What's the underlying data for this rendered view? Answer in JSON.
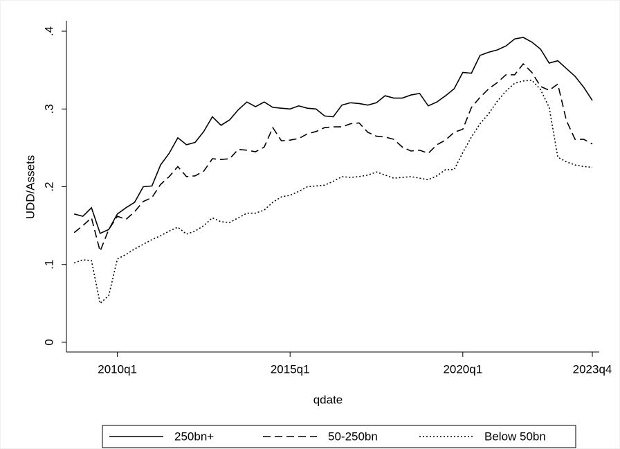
{
  "chart_data": {
    "type": "line",
    "x_label": "qdate",
    "y_label": "UDD/Assets",
    "x": [
      195,
      196,
      197,
      198,
      199,
      200,
      201,
      202,
      203,
      204,
      205,
      206,
      207,
      208,
      209,
      210,
      211,
      212,
      213,
      214,
      215,
      216,
      217,
      218,
      219,
      220,
      221,
      222,
      223,
      224,
      225,
      226,
      227,
      228,
      229,
      230,
      231,
      232,
      233,
      234,
      235,
      236,
      237,
      238,
      239,
      240,
      241,
      242,
      243,
      244,
      245,
      246,
      247,
      248,
      249,
      250,
      251,
      252,
      253,
      254,
      255
    ],
    "series": [
      {
        "name": "250bn+",
        "color": "#000000",
        "dash": "solid",
        "values": [
          0.165,
          0.162,
          0.173,
          0.14,
          0.145,
          0.165,
          0.173,
          0.18,
          0.2,
          0.201,
          0.228,
          0.243,
          0.263,
          0.254,
          0.257,
          0.271,
          0.29,
          0.279,
          0.286,
          0.299,
          0.309,
          0.303,
          0.309,
          0.302,
          0.301,
          0.3,
          0.304,
          0.301,
          0.3,
          0.291,
          0.29,
          0.305,
          0.308,
          0.307,
          0.305,
          0.308,
          0.317,
          0.314,
          0.314,
          0.318,
          0.32,
          0.304,
          0.309,
          0.317,
          0.326,
          0.347,
          0.346,
          0.369,
          0.373,
          0.376,
          0.381,
          0.39,
          0.392,
          0.386,
          0.377,
          0.359,
          0.362,
          0.352,
          0.342,
          0.328,
          0.311
        ]
      },
      {
        "name": "50-250bn",
        "color": "#000000",
        "dash": "dashed",
        "values": [
          0.141,
          0.15,
          0.16,
          0.117,
          0.145,
          0.162,
          0.158,
          0.168,
          0.181,
          0.186,
          0.203,
          0.213,
          0.226,
          0.213,
          0.214,
          0.22,
          0.236,
          0.235,
          0.236,
          0.248,
          0.247,
          0.245,
          0.251,
          0.276,
          0.259,
          0.26,
          0.262,
          0.268,
          0.271,
          0.276,
          0.277,
          0.277,
          0.281,
          0.282,
          0.27,
          0.265,
          0.264,
          0.261,
          0.251,
          0.246,
          0.247,
          0.243,
          0.254,
          0.26,
          0.27,
          0.274,
          0.302,
          0.315,
          0.326,
          0.334,
          0.344,
          0.344,
          0.358,
          0.347,
          0.329,
          0.324,
          0.332,
          0.285,
          0.261,
          0.261,
          0.255
        ]
      },
      {
        "name": "Below 50bn",
        "color": "#000000",
        "dash": "dotted",
        "values": [
          0.102,
          0.106,
          0.105,
          0.05,
          0.06,
          0.107,
          0.113,
          0.12,
          0.126,
          0.132,
          0.137,
          0.143,
          0.148,
          0.139,
          0.143,
          0.15,
          0.16,
          0.155,
          0.154,
          0.16,
          0.166,
          0.166,
          0.17,
          0.18,
          0.187,
          0.189,
          0.194,
          0.2,
          0.201,
          0.202,
          0.207,
          0.213,
          0.212,
          0.213,
          0.215,
          0.219,
          0.215,
          0.211,
          0.212,
          0.213,
          0.211,
          0.209,
          0.214,
          0.222,
          0.222,
          0.244,
          0.264,
          0.281,
          0.294,
          0.31,
          0.323,
          0.333,
          0.336,
          0.337,
          0.325,
          0.302,
          0.238,
          0.232,
          0.228,
          0.226,
          0.225
        ]
      }
    ],
    "xlim": [
      194.1,
      255.8
    ],
    "xticks": [
      {
        "value": 200,
        "label": "2010q1"
      },
      {
        "value": 220,
        "label": "2015q1"
      },
      {
        "value": 240,
        "label": "2020q1"
      },
      {
        "value": 255,
        "label": "2023q4"
      }
    ],
    "ylim": [
      -0.0125,
      0.4134
    ],
    "yticks": [
      0,
      {
        "value": 0.1,
        "label": ".1"
      },
      {
        "value": 0.2,
        "label": ".2"
      },
      {
        "value": 0.3,
        "label": ".3"
      },
      {
        "value": 0.4,
        "label": ".4"
      }
    ],
    "grid": false,
    "legend_position": "bottom"
  }
}
